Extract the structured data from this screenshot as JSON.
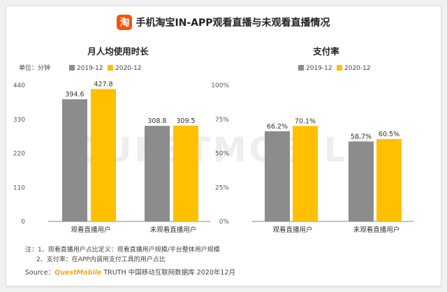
{
  "header": {
    "logo_char": "淘",
    "title": "手机淘宝IN-APP观看直播与未观看直播情况"
  },
  "colors": {
    "series_2019": "#8c8c8c",
    "series_2020": "#ffc000",
    "logo": "#ff5000"
  },
  "watermark": "QUESTMOBILE",
  "chart_data": [
    {
      "type": "bar",
      "title": "月人均使用时长",
      "unit_label": "单位：分钟",
      "categories": [
        "观看直播用户",
        "未观看直播用户"
      ],
      "series": [
        {
          "name": "2019-12",
          "values": [
            394.6,
            308.8
          ],
          "labels": [
            "394.6",
            "308.8"
          ]
        },
        {
          "name": "2020-12",
          "values": [
            427.8,
            309.5
          ],
          "labels": [
            "427.8",
            "309.5"
          ]
        }
      ],
      "ylim": [
        0,
        440
      ],
      "yticks": [
        0,
        110,
        220,
        330,
        440
      ],
      "yticklabels": [
        "0",
        "110",
        "220",
        "330",
        "440"
      ],
      "legend": "top",
      "grid": false
    },
    {
      "type": "bar",
      "title": "支付率",
      "categories": [
        "观看直播用户",
        "未观看直播用户"
      ],
      "series": [
        {
          "name": "2019-12",
          "values": [
            66.2,
            58.7
          ],
          "labels": [
            "66.2%",
            "58.7%"
          ]
        },
        {
          "name": "2020-12",
          "values": [
            70.1,
            60.5
          ],
          "labels": [
            "70.1%",
            "60.5%"
          ]
        }
      ],
      "ylim": [
        0,
        100
      ],
      "yticks": [
        0,
        25,
        50,
        75,
        100
      ],
      "yticklabels": [
        "0%",
        "25%",
        "50%",
        "75%",
        "100%"
      ],
      "legend": "top",
      "grid": false
    }
  ],
  "notes": {
    "line1": "注：1、观看直播用户占比定义：观看直播用户规模/平台整体用户规模",
    "line2": "2、支付率：在APP内调用支付工具的用户占比"
  },
  "source": {
    "prefix": "Source：",
    "brand": "QuestMobile",
    "rest": " TRUTH 中国移动互联网数据库 2020年12月"
  }
}
